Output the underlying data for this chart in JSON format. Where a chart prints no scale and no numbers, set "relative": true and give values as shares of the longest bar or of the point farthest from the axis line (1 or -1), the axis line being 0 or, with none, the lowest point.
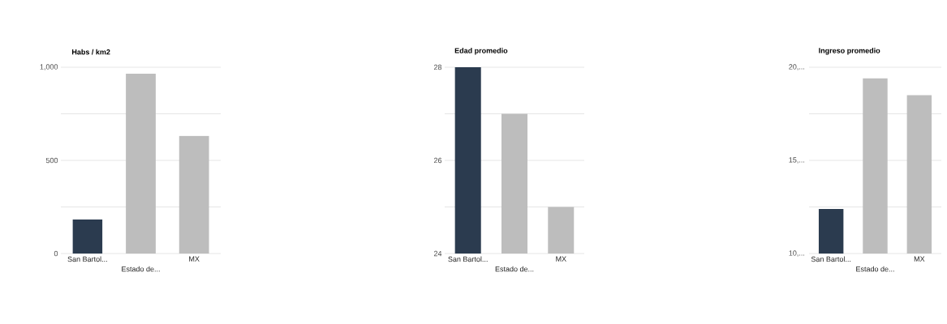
{
  "chart_data": [
    {
      "type": "bar",
      "title": "Habs / km2",
      "categories": [
        "San Bartol...",
        "Estado de...",
        "MX"
      ],
      "values": [
        183,
        965,
        632
      ],
      "colors": [
        "#2b3b4f",
        "#bdbdbd",
        "#bdbdbd"
      ],
      "ylim": [
        0,
        1000
      ],
      "yticks": [
        0,
        {
          "value": 250,
          "label": null
        },
        500,
        {
          "value": 750,
          "label": null
        },
        {
          "value": 1000,
          "label": "1,000"
        }
      ],
      "grid": "y"
    },
    {
      "type": "bar",
      "title": "Edad promedio",
      "categories": [
        "San Bartol...",
        "Estado de...",
        "MX"
      ],
      "values": [
        28,
        27,
        25
      ],
      "colors": [
        "#2b3b4f",
        "#bdbdbd",
        "#bdbdbd"
      ],
      "ylim": [
        24,
        28
      ],
      "yticks": [
        24,
        {
          "value": 25,
          "label": null
        },
        26,
        {
          "value": 27,
          "label": null
        },
        28
      ],
      "grid": "y"
    },
    {
      "type": "bar",
      "title": "Ingreso promedio",
      "categories": [
        "San Bartol...",
        "Estado de...",
        "MX"
      ],
      "values": [
        0.255,
        1,
        0.904
      ],
      "colors": [
        "#2b3b4f",
        "#bdbdbd",
        "#bdbdbd"
      ],
      "relative": true,
      "annotations": [
        "20,...",
        "15,...",
        "10,..."
      ],
      "grid": "y"
    }
  ]
}
